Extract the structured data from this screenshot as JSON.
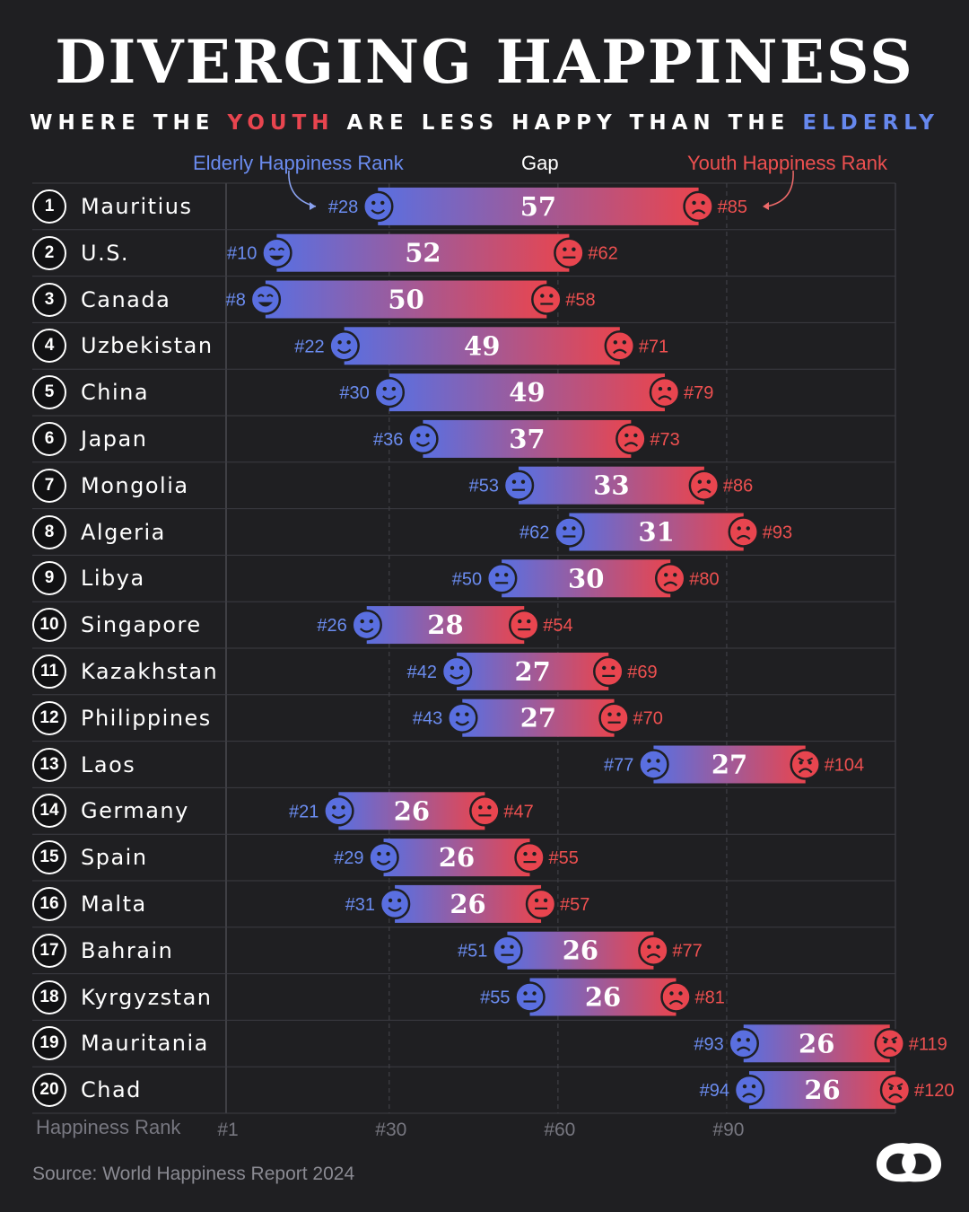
{
  "title": "DIVERGING HAPPINESS",
  "subtitle": {
    "pre": "WHERE THE ",
    "youth": "YOUTH",
    "mid": " ARE LESS HAPPY THAN THE ",
    "elderly": "ELDERLY"
  },
  "legend": {
    "elderly": "Elderly Happiness Rank",
    "gap": "Gap",
    "youth": "Youth Happiness Rank"
  },
  "source": "Source: World Happiness Report 2024",
  "colors": {
    "background": "#1f1f22",
    "elderly": "#5a6fe0",
    "youth": "#e8454f",
    "text": "#ffffff"
  },
  "chart_data": {
    "type": "bar",
    "subtype": "diverging range",
    "axis_label": "Happiness Rank",
    "x_ticks": [
      "#1",
      "#30",
      "#60",
      "#90"
    ],
    "x_tick_values": [
      1,
      30,
      60,
      90
    ],
    "xlim": [
      1,
      120
    ],
    "rows": [
      {
        "rank": 1,
        "country": "Mauritius",
        "elderly": 28,
        "youth": 85,
        "gap": 57
      },
      {
        "rank": 2,
        "country": "U.S.",
        "elderly": 10,
        "youth": 62,
        "gap": 52
      },
      {
        "rank": 3,
        "country": "Canada",
        "elderly": 8,
        "youth": 58,
        "gap": 50
      },
      {
        "rank": 4,
        "country": "Uzbekistan",
        "elderly": 22,
        "youth": 71,
        "gap": 49
      },
      {
        "rank": 5,
        "country": "China",
        "elderly": 30,
        "youth": 79,
        "gap": 49
      },
      {
        "rank": 6,
        "country": "Japan",
        "elderly": 36,
        "youth": 73,
        "gap": 37
      },
      {
        "rank": 7,
        "country": "Mongolia",
        "elderly": 53,
        "youth": 86,
        "gap": 33
      },
      {
        "rank": 8,
        "country": "Algeria",
        "elderly": 62,
        "youth": 93,
        "gap": 31
      },
      {
        "rank": 9,
        "country": "Libya",
        "elderly": 50,
        "youth": 80,
        "gap": 30
      },
      {
        "rank": 10,
        "country": "Singapore",
        "elderly": 26,
        "youth": 54,
        "gap": 28
      },
      {
        "rank": 11,
        "country": "Kazakhstan",
        "elderly": 42,
        "youth": 69,
        "gap": 27
      },
      {
        "rank": 12,
        "country": "Philippines",
        "elderly": 43,
        "youth": 70,
        "gap": 27
      },
      {
        "rank": 13,
        "country": "Laos",
        "elderly": 77,
        "youth": 104,
        "gap": 27
      },
      {
        "rank": 14,
        "country": "Germany",
        "elderly": 21,
        "youth": 47,
        "gap": 26
      },
      {
        "rank": 15,
        "country": "Spain",
        "elderly": 29,
        "youth": 55,
        "gap": 26
      },
      {
        "rank": 16,
        "country": "Malta",
        "elderly": 31,
        "youth": 57,
        "gap": 26
      },
      {
        "rank": 17,
        "country": "Bahrain",
        "elderly": 51,
        "youth": 77,
        "gap": 26
      },
      {
        "rank": 18,
        "country": "Kyrgyzstan",
        "elderly": 55,
        "youth": 81,
        "gap": 26
      },
      {
        "rank": 19,
        "country": "Mauritania",
        "elderly": 93,
        "youth": 119,
        "gap": 26
      },
      {
        "rank": 20,
        "country": "Chad",
        "elderly": 94,
        "youth": 120,
        "gap": 26
      }
    ]
  }
}
